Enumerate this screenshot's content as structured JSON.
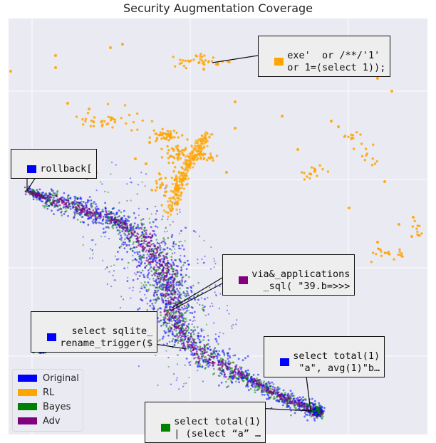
{
  "title": "Security Augmentation Coverage",
  "colors": {
    "Original": "#0000ff",
    "RL": "#ffa500",
    "Bayes": "#008000",
    "Adv": "#800080",
    "background": "#eaeaf2",
    "grid": "#ffffff"
  },
  "chart_data": {
    "type": "scatter",
    "title": "Security Augmentation Coverage",
    "xlabel": "",
    "ylabel": "",
    "grid": true,
    "legend_position": "bottom-left",
    "series": [
      {
        "name": "Original",
        "color": "#0000ff"
      },
      {
        "name": "RL",
        "color": "#ffa500"
      },
      {
        "name": "Bayes",
        "color": "#008000"
      },
      {
        "name": "Adv",
        "color": "#800080"
      }
    ],
    "annotations": [
      {
        "series": "RL",
        "lines": [
          "exe'  or /**/'1'",
          "or 1=(select 1));"
        ]
      },
      {
        "series": "Original",
        "lines": [
          "rollback["
        ]
      },
      {
        "series": "Adv",
        "lines": [
          "via&_applications",
          "  _sql( \"39.b=>>>"
        ]
      },
      {
        "series": "Original",
        "lines": [
          "  select sqlite_",
          "rename_trigger($"
        ]
      },
      {
        "series": "Original",
        "lines": [
          "select total(1)",
          " \"a\", avg(1)\"b…"
        ]
      },
      {
        "series": "Bayes",
        "lines": [
          "select total(1)",
          "| (select “a” …"
        ]
      }
    ]
  }
}
